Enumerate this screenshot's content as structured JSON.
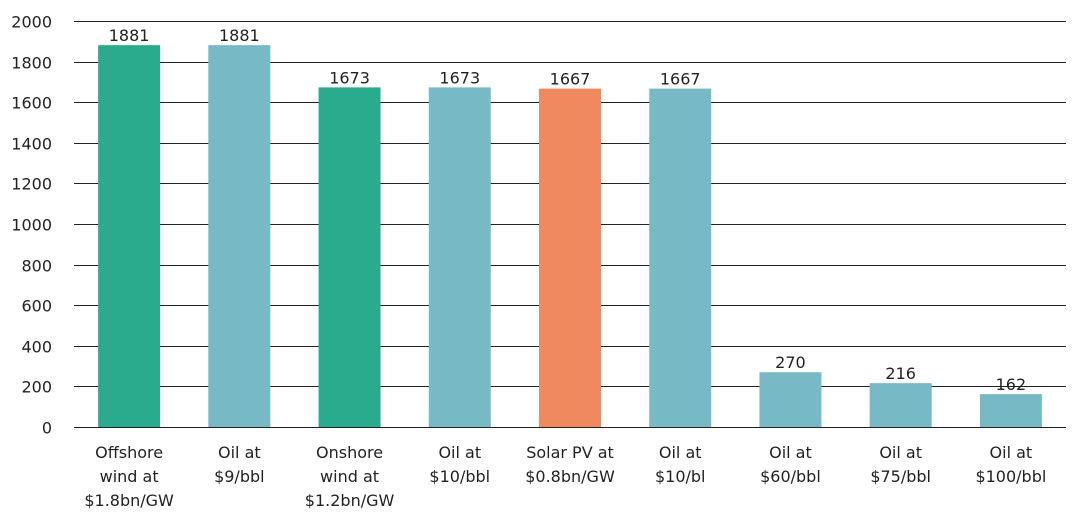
{
  "chart_data": {
    "type": "bar",
    "title": "",
    "xlabel": "",
    "ylabel": "",
    "ylim": [
      0,
      2000
    ],
    "yticks": [
      0,
      200,
      400,
      600,
      800,
      1000,
      1200,
      1400,
      1600,
      1800,
      2000
    ],
    "grid": true,
    "legend": "none",
    "categories": [
      [
        "Offshore",
        "wind at",
        "$1.8bn/GW"
      ],
      [
        "Oil at",
        "$9/bbl"
      ],
      [
        "Onshore",
        "wind at",
        "$1.2bn/GW"
      ],
      [
        "Oil at",
        "$10/bbl"
      ],
      [
        "Solar PV at",
        "$0.8bn/GW"
      ],
      [
        "Oil at",
        "$10/bl"
      ],
      [
        "Oil at",
        "$60/bbl"
      ],
      [
        "Oil at",
        "$75/bbl"
      ],
      [
        "Oil at",
        "$100/bbl"
      ]
    ],
    "values": [
      1881,
      1881,
      1673,
      1673,
      1667,
      1667,
      270,
      216,
      162
    ],
    "data_labels": [
      "1881",
      "1881",
      "1673",
      "1673",
      "1667",
      "1667",
      "270",
      "216",
      "162"
    ],
    "bar_colors": [
      "#2aab8d",
      "#78b9c6",
      "#2aab8d",
      "#78b9c6",
      "#f0895e",
      "#78b9c6",
      "#78b9c6",
      "#78b9c6",
      "#78b9c6"
    ],
    "colors": {
      "wind": "#2aab8d",
      "oil": "#78b9c6",
      "solar": "#f0895e",
      "grid": "#222222"
    }
  }
}
